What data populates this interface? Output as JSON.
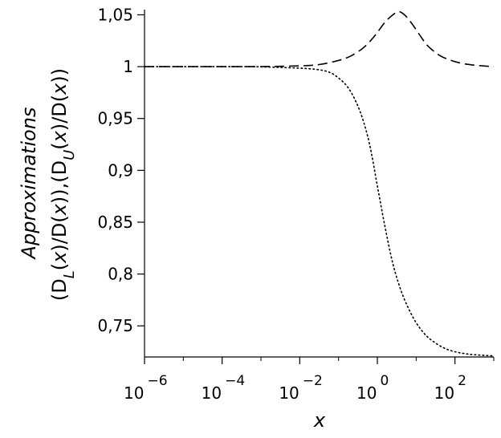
{
  "chart_data": {
    "type": "line",
    "xlabel": "x",
    "ylabel_line1": "Approximations",
    "ylabel_line2_parts": {
      "open": "(D",
      "sub_l": "L",
      "mid1": "(",
      "x1": "x",
      "mid2": ")/D(",
      "x2": "x",
      "mid3": ")),(D",
      "sub_u": "U",
      "mid4": "(",
      "x3": "x",
      "mid5": ")/D(",
      "x4": "x",
      "close": "))"
    },
    "x_scale": "log",
    "xlim": [
      1e-06,
      1000
    ],
    "ylim": [
      0.72,
      1.055
    ],
    "x_ticks": [
      {
        "exp": -6,
        "base": "10",
        "sup": "−6"
      },
      {
        "exp": -4,
        "base": "10",
        "sup": "−4"
      },
      {
        "exp": -2,
        "base": "10",
        "sup": "−2"
      },
      {
        "exp": 0,
        "base": "10",
        "sup": "0"
      },
      {
        "exp": 2,
        "base": "10",
        "sup": "2"
      }
    ],
    "y_ticks": [
      {
        "value": 0.75,
        "label": "0,75"
      },
      {
        "value": 0.8,
        "label": "0,8"
      },
      {
        "value": 0.85,
        "label": "0,85"
      },
      {
        "value": 0.9,
        "label": "0,9"
      },
      {
        "value": 0.95,
        "label": "0,95"
      },
      {
        "value": 1.0,
        "label": "1"
      },
      {
        "value": 1.05,
        "label": "1,05"
      }
    ],
    "series": [
      {
        "style": "dashed",
        "log10_x": [
          -6,
          -5,
          -4,
          -3,
          -2,
          -1.5,
          -1,
          -0.7,
          -0.4,
          -0.2,
          0,
          0.2,
          0.4,
          0.55,
          0.7,
          0.9,
          1.1,
          1.3,
          1.6,
          1.9,
          2.2,
          2.5,
          2.8,
          3
        ],
        "y": [
          1.0,
          1.0,
          1.0,
          1.0001,
          1.0008,
          1.002,
          1.006,
          1.01,
          1.017,
          1.024,
          1.033,
          1.043,
          1.05,
          1.053,
          1.05,
          1.041,
          1.03,
          1.02,
          1.011,
          1.006,
          1.003,
          1.0015,
          1.0005,
          1.0
        ]
      },
      {
        "style": "dotted",
        "log10_x": [
          -6,
          -5,
          -4,
          -3,
          -2,
          -1.5,
          -1.2,
          -1,
          -0.8,
          -0.6,
          -0.4,
          -0.2,
          0,
          0.2,
          0.4,
          0.6,
          0.8,
          1.0,
          1.2,
          1.4,
          1.7,
          2.0,
          2.4,
          2.8,
          3
        ],
        "y": [
          1.0,
          1.0,
          1.0,
          0.9998,
          0.9985,
          0.997,
          0.994,
          0.989,
          0.982,
          0.97,
          0.952,
          0.925,
          0.885,
          0.845,
          0.81,
          0.785,
          0.767,
          0.753,
          0.743,
          0.736,
          0.729,
          0.725,
          0.7225,
          0.7215,
          0.721
        ]
      }
    ]
  }
}
